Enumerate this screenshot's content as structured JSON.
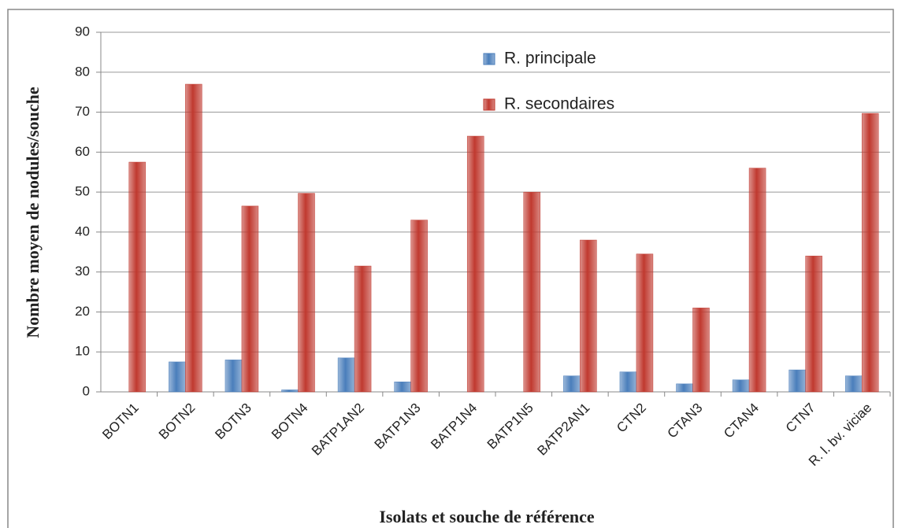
{
  "chart_data": {
    "type": "bar",
    "y_label": "Nombre moyen de nodules/souche",
    "x_label": "Isolats et souche de référence",
    "categories": [
      "BOTN1",
      "BOTN2",
      "BOTN3",
      "BOTN4",
      "BATP1AN2",
      "BATP1N3",
      "BATP1N4",
      "BATP1N5",
      "BATP2AN1",
      "CTN2",
      "CTAN3",
      "CTAN4",
      "CTN7",
      "R. l. bv. viciae"
    ],
    "series": [
      {
        "name": "R. principale",
        "color": "#4a7ebb",
        "values": [
          0,
          7.5,
          8,
          0.5,
          8.5,
          2.5,
          0,
          0,
          4,
          5,
          2,
          3,
          5.5,
          4
        ]
      },
      {
        "name": "R. secondaires",
        "color": "#c0392f",
        "values": [
          57.5,
          77,
          46.5,
          49.7,
          31.5,
          43,
          64,
          50,
          38,
          34.5,
          21,
          56,
          34,
          69.7
        ]
      }
    ],
    "ylim": [
      0,
      90
    ],
    "yticks": [
      0,
      10,
      20,
      30,
      40,
      50,
      60,
      70,
      80,
      90
    ],
    "grid": true,
    "legend": "top"
  }
}
